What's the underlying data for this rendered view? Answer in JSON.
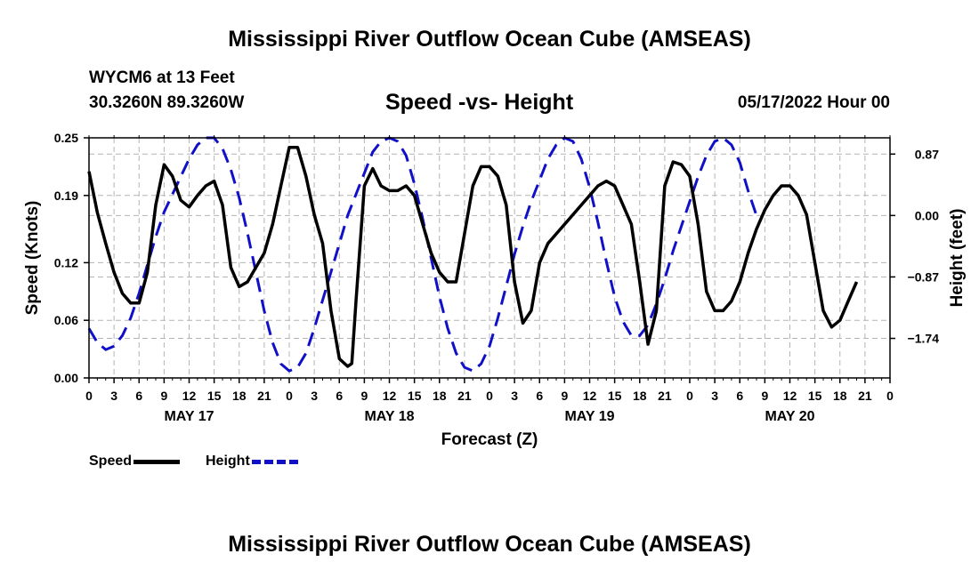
{
  "header": {
    "title": "Mississippi River Outflow Ocean Cube (AMSEAS)",
    "station": "WYCM6 at 13 Feet",
    "coords": "30.3260N  89.3260W",
    "subtitle": "Speed -vs- Height",
    "datetime": "05/17/2022 Hour 00"
  },
  "footer": {
    "title": "Mississippi River Outflow Ocean Cube (AMSEAS)"
  },
  "legend": {
    "speed_label": "Speed",
    "height_label": "Height"
  },
  "colors": {
    "speed": "#000000",
    "height": "#1010c8",
    "grid": "#b4b4b4"
  },
  "chart_data": {
    "type": "line",
    "title": "Speed -vs- Height",
    "xlabel": "Forecast (Z)",
    "ylabel": "Speed (Knots)",
    "y2label": "Height (feet)",
    "xlim": [
      0,
      96
    ],
    "ylim": [
      0,
      0.25
    ],
    "y2lim": [
      -2.3,
      1.1
    ],
    "x_ticks": [
      0,
      3,
      6,
      9,
      12,
      15,
      18,
      21,
      24,
      27,
      30,
      33,
      36,
      39,
      42,
      45,
      48,
      51,
      54,
      57,
      60,
      63,
      66,
      69,
      72,
      75,
      78,
      81,
      84,
      87,
      90,
      93,
      96
    ],
    "x_tick_labels": [
      "0",
      "3",
      "6",
      "9",
      "12",
      "15",
      "18",
      "21",
      "0",
      "3",
      "6",
      "9",
      "12",
      "15",
      "18",
      "21",
      "0",
      "3",
      "6",
      "9",
      "12",
      "15",
      "18",
      "21",
      "0",
      "3",
      "6",
      "9",
      "12",
      "15",
      "18",
      "21",
      "0"
    ],
    "day_labels": [
      {
        "x": 12,
        "label": "MAY 17"
      },
      {
        "x": 36,
        "label": "MAY 18"
      },
      {
        "x": 60,
        "label": "MAY 19"
      },
      {
        "x": 84,
        "label": "MAY 20"
      }
    ],
    "y_ticks": [
      0.0,
      0.06,
      0.12,
      0.19,
      0.25
    ],
    "y_tick_labels": [
      "0.00",
      "0.06",
      "0.12",
      "0.19",
      "0.25"
    ],
    "y2_ticks": [
      0.87,
      0.0,
      -0.87,
      -1.74
    ],
    "y2_tick_labels": [
      "0.87",
      "0.00",
      "−0.87",
      "−1.74"
    ],
    "series": [
      {
        "name": "Speed",
        "axis": "left",
        "points": [
          [
            0,
            0.215
          ],
          [
            1,
            0.172
          ],
          [
            2,
            0.14
          ],
          [
            3,
            0.11
          ],
          [
            4,
            0.088
          ],
          [
            5,
            0.078
          ],
          [
            6,
            0.078
          ],
          [
            7,
            0.11
          ],
          [
            8,
            0.18
          ],
          [
            9,
            0.222
          ],
          [
            10,
            0.21
          ],
          [
            11,
            0.185
          ],
          [
            12,
            0.178
          ],
          [
            13,
            0.19
          ],
          [
            14,
            0.2
          ],
          [
            15,
            0.205
          ],
          [
            16,
            0.18
          ],
          [
            17,
            0.115
          ],
          [
            18,
            0.095
          ],
          [
            19,
            0.1
          ],
          [
            20,
            0.115
          ],
          [
            21,
            0.13
          ],
          [
            22,
            0.16
          ],
          [
            23,
            0.2
          ],
          [
            24,
            0.24
          ],
          [
            25,
            0.24
          ],
          [
            26,
            0.21
          ],
          [
            27,
            0.17
          ],
          [
            28,
            0.14
          ],
          [
            29,
            0.07
          ],
          [
            30,
            0.02
          ],
          [
            31,
            0.012
          ],
          [
            31.5,
            0.015
          ],
          [
            32,
            0.08
          ],
          [
            33,
            0.2
          ],
          [
            34,
            0.218
          ],
          [
            35,
            0.2
          ],
          [
            36,
            0.195
          ],
          [
            37,
            0.195
          ],
          [
            38,
            0.2
          ],
          [
            39,
            0.19
          ],
          [
            40,
            0.16
          ],
          [
            41,
            0.13
          ],
          [
            42,
            0.11
          ],
          [
            43,
            0.1
          ],
          [
            44,
            0.1
          ],
          [
            45,
            0.15
          ],
          [
            46,
            0.2
          ],
          [
            47,
            0.22
          ],
          [
            48,
            0.22
          ],
          [
            49,
            0.21
          ],
          [
            50,
            0.18
          ],
          [
            51,
            0.1
          ],
          [
            52,
            0.057
          ],
          [
            53,
            0.07
          ],
          [
            54,
            0.12
          ],
          [
            55,
            0.14
          ],
          [
            56,
            0.15
          ],
          [
            57,
            0.16
          ],
          [
            58,
            0.17
          ],
          [
            59,
            0.18
          ],
          [
            60,
            0.19
          ],
          [
            61,
            0.2
          ],
          [
            62,
            0.205
          ],
          [
            63,
            0.2
          ],
          [
            64,
            0.18
          ],
          [
            65,
            0.16
          ],
          [
            66,
            0.1
          ],
          [
            67,
            0.035
          ],
          [
            68,
            0.07
          ],
          [
            69,
            0.2
          ],
          [
            70,
            0.225
          ],
          [
            71,
            0.222
          ],
          [
            72,
            0.21
          ],
          [
            73,
            0.16
          ],
          [
            74,
            0.09
          ],
          [
            75,
            0.07
          ],
          [
            76,
            0.07
          ],
          [
            77,
            0.08
          ],
          [
            78,
            0.1
          ],
          [
            79,
            0.13
          ],
          [
            80,
            0.155
          ],
          [
            81,
            0.175
          ],
          [
            82,
            0.19
          ],
          [
            83,
            0.2
          ],
          [
            84,
            0.2
          ],
          [
            85,
            0.19
          ],
          [
            86,
            0.17
          ],
          [
            87,
            0.12
          ],
          [
            88,
            0.07
          ],
          [
            89,
            0.053
          ],
          [
            90,
            0.06
          ],
          [
            91,
            0.08
          ],
          [
            92,
            0.1
          ]
        ]
      },
      {
        "name": "Height",
        "axis": "right",
        "points": [
          [
            0,
            -1.6
          ],
          [
            1,
            -1.8
          ],
          [
            2,
            -1.9
          ],
          [
            3,
            -1.85
          ],
          [
            4,
            -1.7
          ],
          [
            5,
            -1.45
          ],
          [
            6,
            -1.1
          ],
          [
            7,
            -0.7
          ],
          [
            8,
            -0.3
          ],
          [
            9,
            0.05
          ],
          [
            10,
            0.3
          ],
          [
            11,
            0.55
          ],
          [
            12,
            0.8
          ],
          [
            13,
            1.0
          ],
          [
            14,
            1.1
          ],
          [
            15,
            1.1
          ],
          [
            16,
            0.95
          ],
          [
            17,
            0.65
          ],
          [
            18,
            0.25
          ],
          [
            19,
            -0.25
          ],
          [
            20,
            -0.8
          ],
          [
            21,
            -1.35
          ],
          [
            22,
            -1.8
          ],
          [
            23,
            -2.1
          ],
          [
            24,
            -2.2
          ],
          [
            25,
            -2.15
          ],
          [
            26,
            -1.95
          ],
          [
            27,
            -1.6
          ],
          [
            28,
            -1.2
          ],
          [
            29,
            -0.8
          ],
          [
            30,
            -0.4
          ],
          [
            31,
            0.0
          ],
          [
            32,
            0.3
          ],
          [
            33,
            0.6
          ],
          [
            34,
            0.9
          ],
          [
            35,
            1.05
          ],
          [
            36,
            1.1
          ],
          [
            37,
            1.05
          ],
          [
            38,
            0.85
          ],
          [
            39,
            0.45
          ],
          [
            40,
            -0.05
          ],
          [
            41,
            -0.6
          ],
          [
            42,
            -1.15
          ],
          [
            43,
            -1.6
          ],
          [
            44,
            -1.95
          ],
          [
            45,
            -2.15
          ],
          [
            46,
            -2.2
          ],
          [
            47,
            -2.1
          ],
          [
            48,
            -1.85
          ],
          [
            49,
            -1.45
          ],
          [
            50,
            -1.0
          ],
          [
            51,
            -0.55
          ],
          [
            52,
            -0.15
          ],
          [
            53,
            0.2
          ],
          [
            54,
            0.5
          ],
          [
            55,
            0.8
          ],
          [
            56,
            1.0
          ],
          [
            57,
            1.1
          ],
          [
            58,
            1.05
          ],
          [
            59,
            0.8
          ],
          [
            60,
            0.4
          ],
          [
            61,
            -0.1
          ],
          [
            62,
            -0.65
          ],
          [
            63,
            -1.15
          ],
          [
            64,
            -1.5
          ],
          [
            65,
            -1.7
          ],
          [
            66,
            -1.7
          ],
          [
            67,
            -1.55
          ],
          [
            68,
            -1.25
          ],
          [
            69,
            -0.9
          ],
          [
            70,
            -0.5
          ],
          [
            71,
            -0.15
          ],
          [
            72,
            0.2
          ],
          [
            73,
            0.55
          ],
          [
            74,
            0.85
          ],
          [
            75,
            1.05
          ],
          [
            76,
            1.1
          ],
          [
            77,
            1.0
          ],
          [
            78,
            0.75
          ],
          [
            79,
            0.35
          ],
          [
            80,
            0.0
          ]
        ]
      }
    ]
  }
}
